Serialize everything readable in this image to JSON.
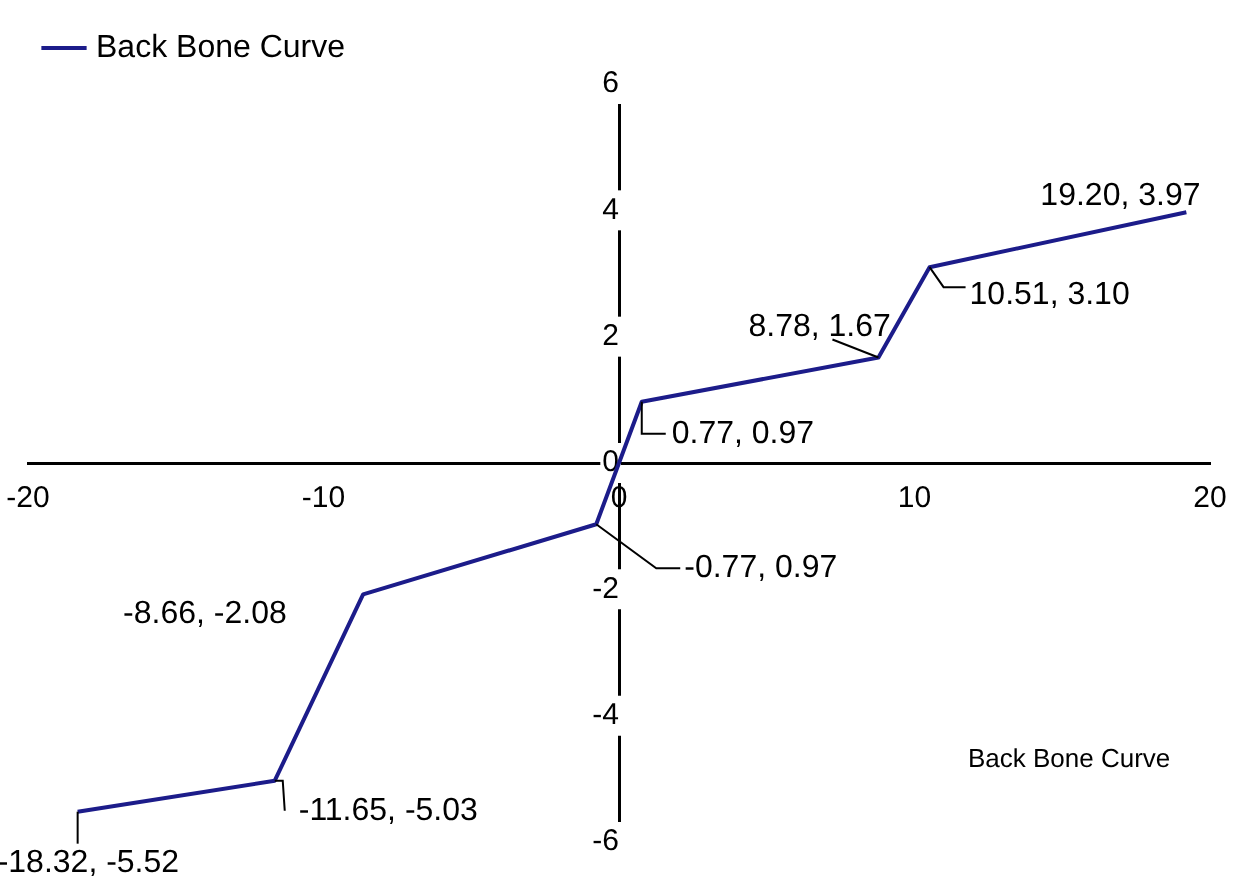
{
  "chart_data": {
    "type": "line",
    "x": [
      -18.32,
      -11.65,
      -8.66,
      -0.77,
      0.77,
      8.78,
      10.51,
      19.2
    ],
    "series": [
      {
        "name": "Back Bone Curve",
        "color": "#1c1c8a",
        "values": [
          -5.52,
          -5.03,
          -2.08,
          -0.97,
          0.97,
          1.67,
          3.1,
          3.97
        ]
      }
    ],
    "xlim": [
      -20,
      20
    ],
    "xticks": [
      -20,
      -10,
      0,
      10,
      20
    ],
    "ylim": [
      -6,
      6
    ],
    "yticks": [
      -6,
      -4,
      -2,
      0,
      2,
      4,
      6
    ],
    "grid": false,
    "legend": "top left",
    "marker": "none",
    "line_style": "solid",
    "annotations": [
      {
        "text": "-18.32, -5.52",
        "x": -18.32,
        "y": -5.52
      },
      {
        "text": "-11.65, -5.03",
        "x": -11.65,
        "y": -5.03
      },
      {
        "text": "-8.66, -2.08",
        "x": -8.66,
        "y": -2.08
      },
      {
        "text": "-0.77, 0.97",
        "x": -0.77,
        "y": -0.97
      },
      {
        "text": "0.77, 0.97",
        "x": 0.77,
        "y": 0.97
      },
      {
        "text": "8.78, 1.67",
        "x": 8.78,
        "y": 1.67
      },
      {
        "text": "10.51, 3.10",
        "x": 10.51,
        "y": 3.1
      },
      {
        "text": "19.20, 3.97",
        "x": 19.2,
        "y": 3.97
      },
      "Back Bone Curve"
    ]
  }
}
